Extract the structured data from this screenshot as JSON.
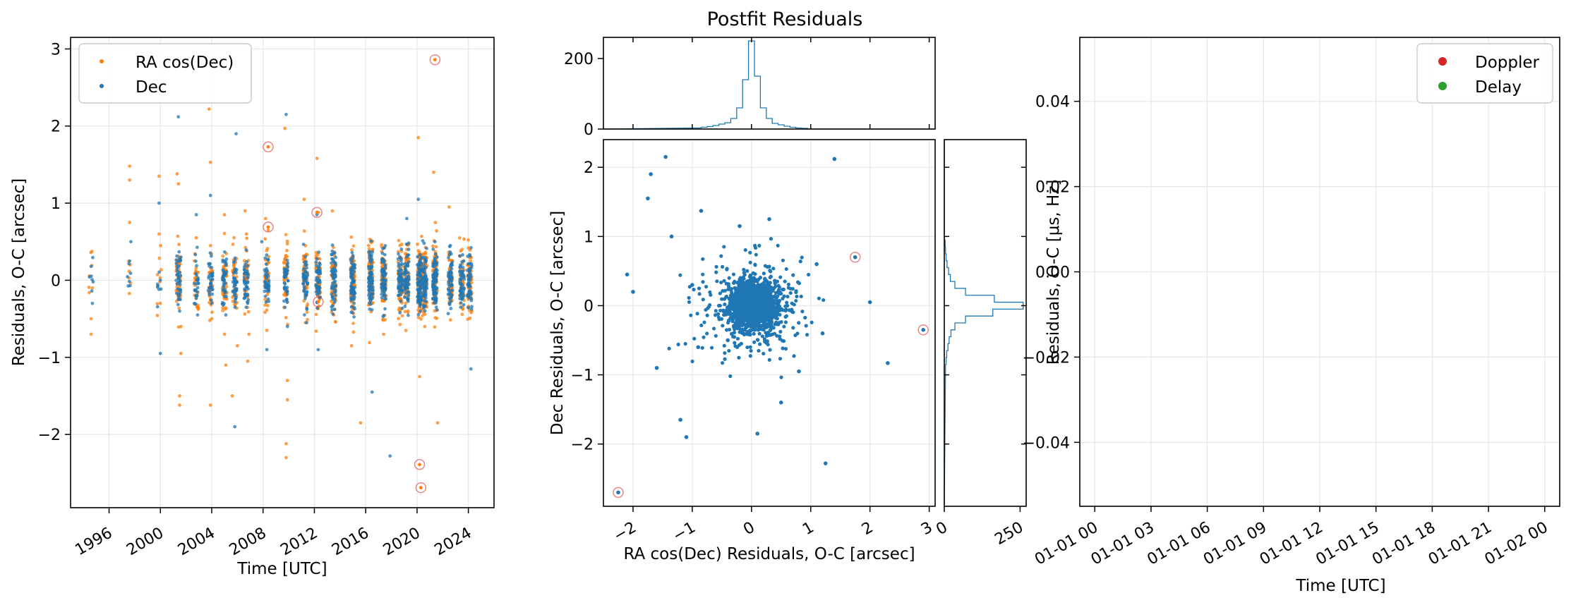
{
  "title": "Postfit Residuals",
  "colors": {
    "ra": "#ff7f0e",
    "dec": "#1f77b4",
    "outlier": "#d62728",
    "doppler": "#d62728",
    "delay": "#2ca02c"
  },
  "chart_data": [
    {
      "type": "scatter",
      "panel": "time-residuals",
      "xlabel": "Time [UTC]",
      "ylabel": "Residuals, O-C [arcsec]",
      "xlim": [
        1993.0,
        2026.0
      ],
      "ylim": [
        -2.95,
        3.15
      ],
      "xticks": [
        1996,
        2000,
        2004,
        2008,
        2012,
        2016,
        2020,
        2024
      ],
      "yticks": [
        -2,
        -1,
        0,
        1,
        2,
        3
      ],
      "legend": {
        "position": "top-left",
        "entries": [
          "RA cos(Dec)",
          "Dec"
        ]
      },
      "series": [
        {
          "name": "RA cos(Dec)",
          "color": "#ff7f0e",
          "points": [
            [
              1994.6,
              -0.7
            ],
            [
              1994.6,
              -0.5
            ],
            [
              1994.7,
              -0.1
            ],
            [
              1997.6,
              1.48
            ],
            [
              1997.6,
              1.3
            ],
            [
              1997.6,
              0.75
            ],
            [
              1999.9,
              1.35
            ],
            [
              1999.9,
              0.6
            ],
            [
              2000.0,
              -0.3
            ],
            [
              2001.3,
              1.38
            ],
            [
              2001.4,
              1.25
            ],
            [
              2001.5,
              -1.62
            ],
            [
              2001.5,
              -1.5
            ],
            [
              2001.6,
              -0.95
            ],
            [
              2001.6,
              -0.6
            ],
            [
              2002.8,
              0.55
            ],
            [
              2002.8,
              -0.2
            ],
            [
              2003.8,
              2.22
            ],
            [
              2003.9,
              1.53
            ],
            [
              2003.9,
              -1.62
            ],
            [
              2004.0,
              -0.5
            ],
            [
              2005.0,
              0.85
            ],
            [
              2005.0,
              -0.7
            ],
            [
              2005.1,
              -1.1
            ],
            [
              2005.6,
              -1.5
            ],
            [
              2006.0,
              -0.85
            ],
            [
              2006.6,
              0.9
            ],
            [
              2006.7,
              0.6
            ],
            [
              2006.8,
              -1.05
            ],
            [
              2006.9,
              -0.7
            ],
            [
              2008.2,
              0.8
            ],
            [
              2008.3,
              -0.65
            ],
            [
              2008.4,
              0.65
            ],
            [
              2009.7,
              1.97
            ],
            [
              2009.8,
              -2.12
            ],
            [
              2009.8,
              -2.3
            ],
            [
              2009.9,
              -1.55
            ],
            [
              2009.9,
              -1.3
            ],
            [
              2011.2,
              1.05
            ],
            [
              2011.3,
              -0.55
            ],
            [
              2012.2,
              1.58
            ],
            [
              2012.3,
              0.88
            ],
            [
              2012.4,
              -0.25
            ],
            [
              2013.4,
              0.9
            ],
            [
              2013.5,
              -0.3
            ],
            [
              2014.9,
              -0.85
            ],
            [
              2015.6,
              -1.85
            ],
            [
              2016.4,
              0.5
            ],
            [
              2016.5,
              -0.3
            ],
            [
              2017.4,
              -0.7
            ],
            [
              2017.6,
              -0.2
            ],
            [
              2018.7,
              -0.1
            ],
            [
              2019.2,
              0.4
            ],
            [
              2019.3,
              -0.4
            ],
            [
              2020.1,
              1.85
            ],
            [
              2020.2,
              -1.25
            ],
            [
              2020.6,
              -0.6
            ],
            [
              2021.3,
              1.4
            ],
            [
              2021.4,
              -0.3
            ],
            [
              2021.6,
              -1.85
            ],
            [
              2022.5,
              0.95
            ],
            [
              2022.7,
              -0.2
            ],
            [
              2023.5,
              0.4
            ],
            [
              2024.0,
              -0.1
            ],
            [
              2024.2,
              0.3
            ]
          ]
        },
        {
          "name": "Dec",
          "color": "#1f77b4",
          "points": [
            [
              1994.6,
              0.18
            ],
            [
              1994.7,
              -0.3
            ],
            [
              1997.6,
              0.25
            ],
            [
              1997.7,
              0.5
            ],
            [
              1999.9,
              1.0
            ],
            [
              2000.0,
              -0.95
            ],
            [
              2001.4,
              2.12
            ],
            [
              2001.5,
              -0.4
            ],
            [
              2001.6,
              0.3
            ],
            [
              2002.8,
              0.85
            ],
            [
              2002.9,
              -0.45
            ],
            [
              2003.9,
              1.1
            ],
            [
              2004.0,
              -0.3
            ],
            [
              2005.0,
              0.25
            ],
            [
              2005.1,
              -0.45
            ],
            [
              2005.8,
              -1.9
            ],
            [
              2005.9,
              1.9
            ],
            [
              2006.7,
              0.1
            ],
            [
              2006.8,
              -0.3
            ],
            [
              2007.9,
              0.5
            ],
            [
              2008.3,
              -0.9
            ],
            [
              2009.8,
              2.15
            ],
            [
              2009.9,
              -0.6
            ],
            [
              2011.3,
              0.2
            ],
            [
              2011.4,
              -0.55
            ],
            [
              2012.2,
              0.85
            ],
            [
              2012.3,
              -0.9
            ],
            [
              2013.5,
              0.35
            ],
            [
              2013.6,
              -0.25
            ],
            [
              2015.0,
              0.2
            ],
            [
              2015.1,
              -0.3
            ],
            [
              2016.4,
              0.15
            ],
            [
              2016.5,
              -1.45
            ],
            [
              2017.3,
              0.35
            ],
            [
              2017.4,
              -0.2
            ],
            [
              2017.9,
              -2.28
            ],
            [
              2018.7,
              0.15
            ],
            [
              2019.2,
              0.8
            ],
            [
              2019.3,
              -0.15
            ],
            [
              2020.1,
              1.05
            ],
            [
              2020.2,
              -0.25
            ],
            [
              2020.6,
              -0.2
            ],
            [
              2021.4,
              0.5
            ],
            [
              2021.5,
              -0.35
            ],
            [
              2022.6,
              0.45
            ],
            [
              2022.7,
              -0.2
            ],
            [
              2023.4,
              -0.35
            ],
            [
              2024.1,
              0.15
            ],
            [
              2024.2,
              -1.15
            ]
          ]
        }
      ],
      "outliers": [
        [
          2008.4,
          1.73
        ],
        [
          2008.4,
          0.69
        ],
        [
          2012.2,
          0.88
        ],
        [
          2012.3,
          -0.28
        ],
        [
          2020.2,
          -2.39
        ],
        [
          2020.3,
          -2.69
        ],
        [
          2021.4,
          2.86
        ]
      ]
    },
    {
      "type": "scatter",
      "panel": "ra-dec-scatter",
      "xlabel": "RA cos(Dec) Residuals, O-C [arcsec]",
      "ylabel": "Dec Residuals, O-C [arcsec]",
      "xlim": [
        -2.5,
        3.1
      ],
      "ylim": [
        -2.9,
        2.4
      ],
      "xticks": [
        -2,
        -1,
        0,
        1,
        2,
        3
      ],
      "yticks": [
        -2,
        -1,
        0,
        1,
        2
      ],
      "points": [
        [
          -2.25,
          -2.7
        ],
        [
          -1.75,
          1.55
        ],
        [
          -1.7,
          1.9
        ],
        [
          -1.45,
          2.15
        ],
        [
          -1.35,
          1.0
        ],
        [
          -1.2,
          -1.65
        ],
        [
          -1.1,
          -1.9
        ],
        [
          -0.85,
          1.37
        ],
        [
          -0.4,
          -0.5
        ],
        [
          1.4,
          2.12
        ],
        [
          1.25,
          -2.28
        ],
        [
          2.3,
          -0.83
        ],
        [
          2.0,
          0.05
        ],
        [
          1.75,
          0.7
        ],
        [
          2.9,
          -0.35
        ],
        [
          -2.1,
          0.45
        ],
        [
          -2.0,
          0.2
        ],
        [
          -1.6,
          -0.9
        ],
        [
          0.1,
          -1.85
        ],
        [
          0.5,
          -1.4
        ],
        [
          0.3,
          1.25
        ],
        [
          -0.2,
          1.15
        ],
        [
          0.8,
          -0.95
        ],
        [
          1.1,
          0.6
        ],
        [
          -1.0,
          0.3
        ],
        [
          -0.9,
          -0.6
        ],
        [
          1.2,
          -0.4
        ]
      ],
      "outliers": [
        [
          -2.25,
          -2.7
        ],
        [
          1.75,
          0.7
        ],
        [
          2.9,
          -0.35
        ]
      ]
    },
    {
      "type": "bar",
      "panel": "ra-histogram",
      "ylim": [
        0,
        260
      ],
      "yticks": [
        0,
        200
      ],
      "bin_centers": [
        -0.9,
        -0.8,
        -0.7,
        -0.6,
        -0.5,
        -0.4,
        -0.3,
        -0.2,
        -0.1,
        0.0,
        0.1,
        0.2,
        0.3,
        0.4,
        0.5,
        0.6,
        0.7,
        0.8,
        0.9
      ],
      "counts": [
        3,
        5,
        7,
        10,
        14,
        18,
        30,
        60,
        140,
        250,
        150,
        60,
        30,
        16,
        12,
        8,
        5,
        3,
        2
      ]
    },
    {
      "type": "bar",
      "panel": "dec-histogram",
      "xlim": [
        0,
        270
      ],
      "xticks": [
        0,
        250
      ],
      "bin_centers": [
        -0.9,
        -0.8,
        -0.7,
        -0.6,
        -0.5,
        -0.4,
        -0.3,
        -0.2,
        -0.1,
        0.0,
        0.1,
        0.2,
        0.3,
        0.4,
        0.5,
        0.6,
        0.7,
        0.8,
        0.9
      ],
      "counts": [
        4,
        6,
        8,
        12,
        16,
        22,
        35,
        70,
        160,
        260,
        165,
        70,
        35,
        20,
        14,
        9,
        6,
        4,
        3
      ]
    },
    {
      "type": "scatter",
      "panel": "radar-residuals",
      "xlabel": "Time [UTC]",
      "ylabel": "Residuals, O-C [μs, Hz]",
      "xlim": [
        -0.1,
        3.1
      ],
      "ylim": [
        -0.055,
        0.055
      ],
      "xticks": [
        "01-01 00",
        "01-01 03",
        "01-01 06",
        "01-01 09",
        "01-01 12",
        "01-01 15",
        "01-01 18",
        "01-01 21",
        "01-02 00"
      ],
      "yticks": [
        "0.04",
        "0.02",
        "0.00",
        "−0.02",
        "−0.04"
      ],
      "legend": {
        "position": "top-right",
        "entries": [
          "Doppler",
          "Delay"
        ]
      },
      "series": [
        {
          "name": "Doppler",
          "color": "#d62728",
          "points": []
        },
        {
          "name": "Delay",
          "color": "#2ca02c",
          "points": []
        }
      ]
    }
  ]
}
